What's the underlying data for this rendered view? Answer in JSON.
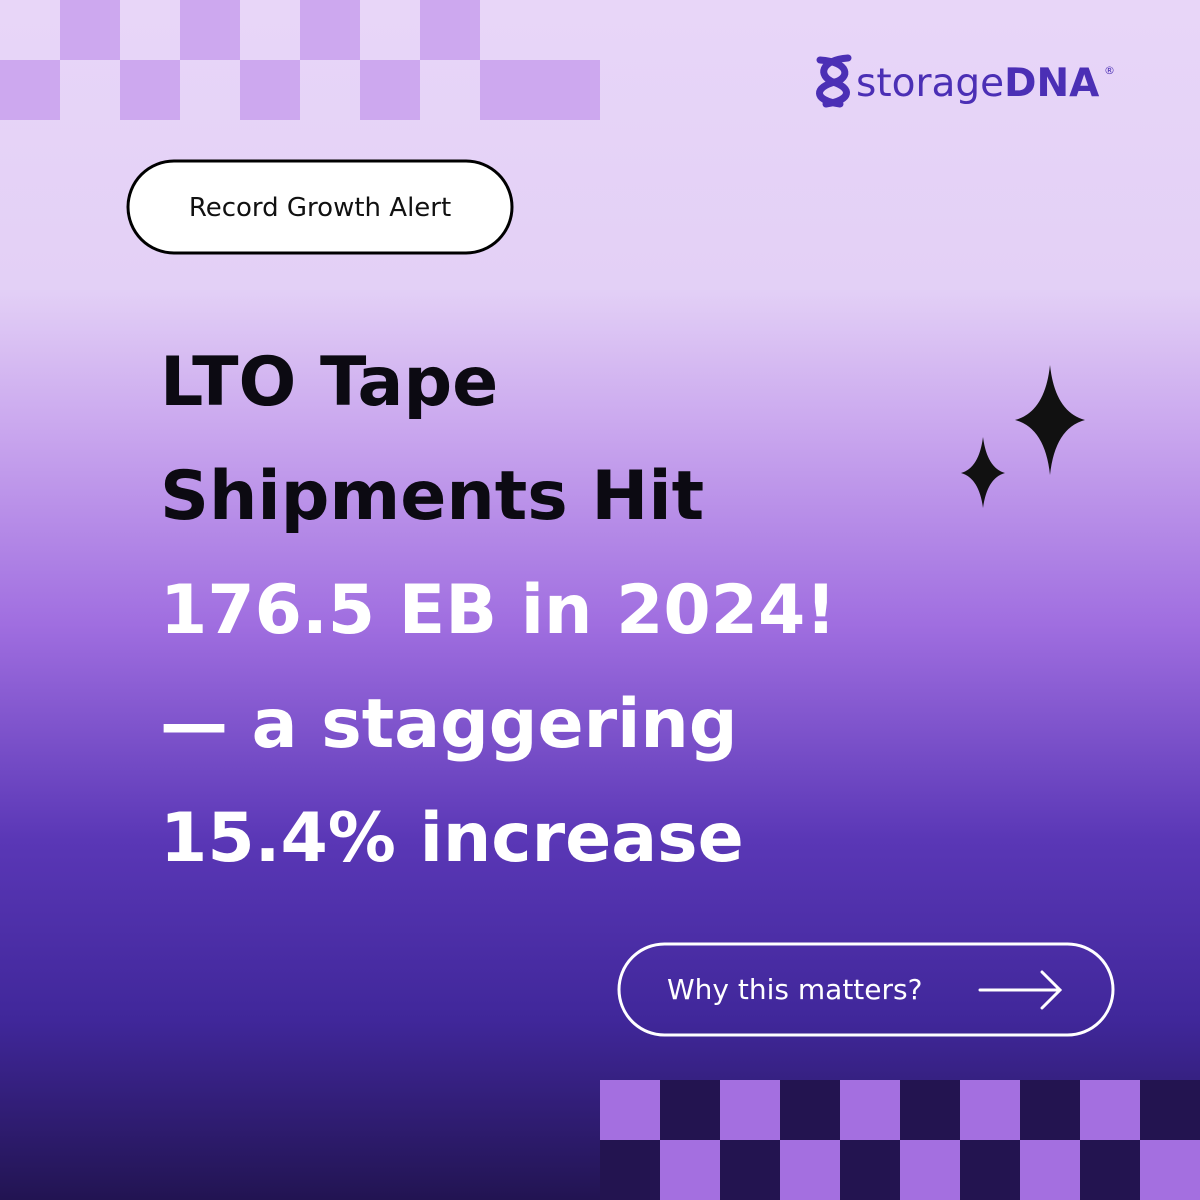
{
  "logo": {
    "text_light": "storage",
    "text_bold": "DNA",
    "mark": "®"
  },
  "badge": "Record Growth Alert",
  "headline": {
    "dark_lines": [
      "LTO Tape",
      "Shipments Hit"
    ],
    "light_lines": [
      "176.5 EB in 2024!",
      "— a staggering",
      "15.4% increase"
    ]
  },
  "button": "Why this matters?"
}
